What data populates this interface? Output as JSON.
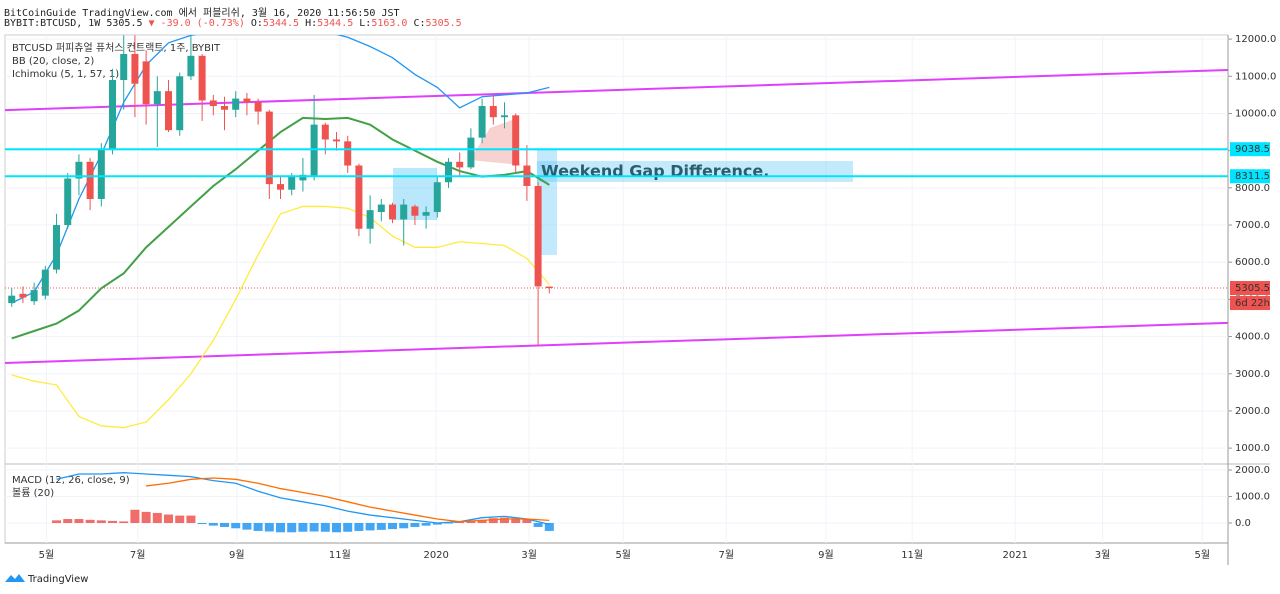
{
  "header": {
    "line1": "BitCoinGuide TradingView.com 에서 퍼블리쉬, 3월 16, 2020 11:56:50 JST",
    "symbol": "BYBIT:BTCUSD, 1W",
    "last": "5305.5",
    "change": "▼ -39.0 (-0.73%)",
    "ohlc": [
      {
        "label": "O:",
        "value": "5344.5"
      },
      {
        "label": "H:",
        "value": "5344.5"
      },
      {
        "label": "L:",
        "value": "5163.0"
      },
      {
        "label": "C:",
        "value": "5305.5"
      }
    ]
  },
  "brand": "TradingView",
  "chart_data": {
    "type": "candlestick",
    "legend": [
      "BTCUSD 퍼피츄얼 퓨처스 컨트랙트, 1주, BYBIT",
      "BB (20, close, 2)",
      "Ichimoku (5, 1, 57, 1)"
    ],
    "annotation": "Weekend Gap Difference.",
    "up_color": "#26a69a",
    "down_color": "#ef5350",
    "xlim": [
      -0.6,
      108.6
    ],
    "xticks": [
      {
        "value": 3.1,
        "label": "5월"
      },
      {
        "value": 11.25,
        "label": "7월"
      },
      {
        "value": 20.1,
        "label": "9월"
      },
      {
        "value": 29.3,
        "label": "11월"
      },
      {
        "value": 37.9,
        "label": "2020"
      },
      {
        "value": 46.2,
        "label": "3월"
      },
      {
        "value": 54.6,
        "label": "5월"
      },
      {
        "value": 63.8,
        "label": "7월"
      },
      {
        "value": 72.7,
        "label": "9월"
      },
      {
        "value": 80.4,
        "label": "11월"
      },
      {
        "value": 89.6,
        "label": "2021"
      },
      {
        "value": 97.4,
        "label": "3월"
      },
      {
        "value": 106.3,
        "label": "5월"
      }
    ],
    "ylim": [
      600,
      12110
    ],
    "yticks": [
      {
        "value": 1000,
        "label": "1000.0"
      },
      {
        "value": 2000,
        "label": "2000.0"
      },
      {
        "value": 3000,
        "label": "3000.0"
      },
      {
        "value": 4000,
        "label": "4000.0"
      },
      {
        "value": 5000,
        "label": "5000.0"
      },
      {
        "value": 6000,
        "label": "6000.0"
      },
      {
        "value": 7000,
        "label": "7000.0"
      },
      {
        "value": 8000,
        "label": "8000.0"
      },
      {
        "value": 9000,
        "label": "9000.0"
      },
      {
        "value": 10000,
        "label": "10000.0"
      },
      {
        "value": 11000,
        "label": "11000.0"
      },
      {
        "value": 12000,
        "label": "12000.0"
      }
    ],
    "grid": true,
    "candles": [
      [
        4900,
        5300,
        4800,
        5100
      ],
      [
        5150,
        5350,
        4900,
        5050
      ],
      [
        4950,
        5450,
        4850,
        5250
      ],
      [
        5100,
        5900,
        5000,
        5800
      ],
      [
        5800,
        7300,
        5700,
        7000
      ],
      [
        7000,
        8400,
        6900,
        8250
      ],
      [
        8250,
        8900,
        7800,
        8700
      ],
      [
        8700,
        8800,
        7400,
        7700
      ],
      [
        7700,
        9200,
        7500,
        9050
      ],
      [
        9050,
        11200,
        8900,
        10900
      ],
      [
        10900,
        12100,
        10100,
        11600
      ],
      [
        11600,
        12100,
        9900,
        10800
      ],
      [
        11400,
        11700,
        9700,
        10250
      ],
      [
        10250,
        11000,
        9100,
        10600
      ],
      [
        10600,
        10900,
        9500,
        9550
      ],
      [
        9550,
        11100,
        9400,
        11000
      ],
      [
        11000,
        12100,
        10900,
        11550
      ],
      [
        11550,
        11600,
        9800,
        10350
      ],
      [
        10350,
        10500,
        9950,
        10200
      ],
      [
        10200,
        10450,
        9550,
        10100
      ],
      [
        10100,
        10600,
        9900,
        10400
      ],
      [
        10400,
        10550,
        9950,
        10300
      ],
      [
        10300,
        10400,
        9700,
        10050
      ],
      [
        10050,
        10100,
        7700,
        8100
      ],
      [
        8100,
        8300,
        7700,
        7950
      ],
      [
        7950,
        8400,
        7800,
        8300
      ],
      [
        8200,
        8800,
        7900,
        8350
      ],
      [
        8300,
        10500,
        8200,
        9700
      ],
      [
        9700,
        9750,
        8900,
        9300
      ],
      [
        9300,
        9500,
        9000,
        9250
      ],
      [
        9250,
        9400,
        8400,
        8600
      ],
      [
        8600,
        8650,
        6700,
        6900
      ],
      [
        6900,
        7800,
        6500,
        7400
      ],
      [
        7350,
        7700,
        7100,
        7550
      ],
      [
        7550,
        7600,
        7050,
        7150
      ],
      [
        7150,
        7700,
        6450,
        7550
      ],
      [
        7500,
        7550,
        7000,
        7250
      ],
      [
        7250,
        7500,
        6900,
        7350
      ],
      [
        7350,
        8300,
        7200,
        8150
      ],
      [
        8150,
        8800,
        8000,
        8700
      ],
      [
        8700,
        8950,
        8300,
        8550
      ],
      [
        8550,
        9600,
        8500,
        9350
      ],
      [
        9350,
        10400,
        9200,
        10200
      ],
      [
        10200,
        10500,
        9700,
        9900
      ],
      [
        9900,
        10300,
        9600,
        9950
      ],
      [
        9950,
        10000,
        8400,
        8600
      ],
      [
        8600,
        9150,
        7650,
        8050
      ],
      [
        8050,
        8150,
        3775,
        5350
      ],
      [
        5344.5,
        5344.5,
        5163.0,
        5305.5
      ]
    ],
    "line_x": [
      0,
      2,
      4,
      6,
      8,
      10,
      12,
      14,
      16,
      18,
      20,
      22,
      24,
      26,
      28,
      30,
      32,
      34,
      36,
      38,
      40,
      42,
      44,
      46,
      48
    ],
    "bb": {
      "upper": {
        "color": "#2196f3",
        "values": [
          4900,
          5200,
          6200,
          7700,
          8900,
          10300,
          11300,
          11900,
          12100,
          12200,
          12200,
          12200,
          12200,
          12200,
          12200,
          12050,
          11800,
          11500,
          11050,
          10700,
          10150,
          10450,
          10500,
          10550,
          10700
        ]
      },
      "basis": {
        "color": "#43a047",
        "values": [
          3950,
          4150,
          4350,
          4700,
          5300,
          5700,
          6400,
          6950,
          7500,
          8050,
          8500,
          9000,
          9500,
          9880,
          9850,
          9880,
          9700,
          9300,
          9000,
          8700,
          8450,
          8300,
          8350,
          8450,
          8080
        ]
      },
      "lower": {
        "color": "#ffeb3b",
        "values": [
          2970,
          2800,
          2700,
          1850,
          1600,
          1550,
          1700,
          2300,
          3000,
          3900,
          5000,
          6200,
          7300,
          7500,
          7500,
          7450,
          7200,
          6700,
          6400,
          6400,
          6550,
          6500,
          6450,
          6100,
          5400
        ]
      }
    },
    "trendlines": [
      {
        "color": "#e040fb",
        "x": [
          -0.6,
          108.6
        ],
        "y": [
          10090,
          11170
        ]
      },
      {
        "color": "#e040fb",
        "x": [
          -0.6,
          108.6
        ],
        "y": [
          3290,
          4370
        ]
      }
    ],
    "hlines": [
      {
        "value": 9038.5,
        "color": "#00e5ff"
      },
      {
        "value": 8311.5,
        "color": "#00e5ff"
      }
    ],
    "price_line": {
      "value": 5305.5,
      "color": "#ef5350",
      "countdown": "6d 22h"
    },
    "macd": {
      "legend": [
        "MACD (12, 26, close, 9)",
        "볼륨 (20)"
      ],
      "ylim": [
        -755,
        2190
      ],
      "yticks": [
        {
          "value": 0,
          "label": "0.0"
        },
        {
          "value": 1000,
          "label": "1000.0"
        },
        {
          "value": 2000,
          "label": "2000.0"
        }
      ],
      "histogram": [
        null,
        null,
        null,
        null,
        100,
        150,
        150,
        120,
        100,
        80,
        60,
        500,
        420,
        380,
        320,
        280,
        280,
        -40,
        -100,
        -150,
        -200,
        -250,
        -300,
        -320,
        -350,
        -350,
        -330,
        -320,
        -330,
        -350,
        -330,
        -300,
        -280,
        -260,
        -230,
        -200,
        -150,
        -100,
        -60,
        -20,
        40,
        80,
        120,
        180,
        200,
        180,
        140,
        -150,
        -300
      ],
      "pos_color": "#ef5350",
      "neg_color": "#2196f3",
      "macd": {
        "color": "#2196f3",
        "values": [
          null,
          null,
          1650,
          1850,
          1850,
          1900,
          1850,
          1800,
          1750,
          1600,
          1500,
          1200,
          950,
          800,
          650,
          450,
          300,
          200,
          100,
          0,
          50,
          200,
          250,
          150,
          -50
        ]
      },
      "signal": {
        "color": "#ff6d00",
        "values": [
          null,
          null,
          null,
          null,
          null,
          null,
          1400,
          1500,
          1650,
          1700,
          1650,
          1500,
          1300,
          1150,
          1000,
          800,
          600,
          450,
          300,
          150,
          50,
          100,
          150,
          150,
          100
        ]
      }
    }
  }
}
